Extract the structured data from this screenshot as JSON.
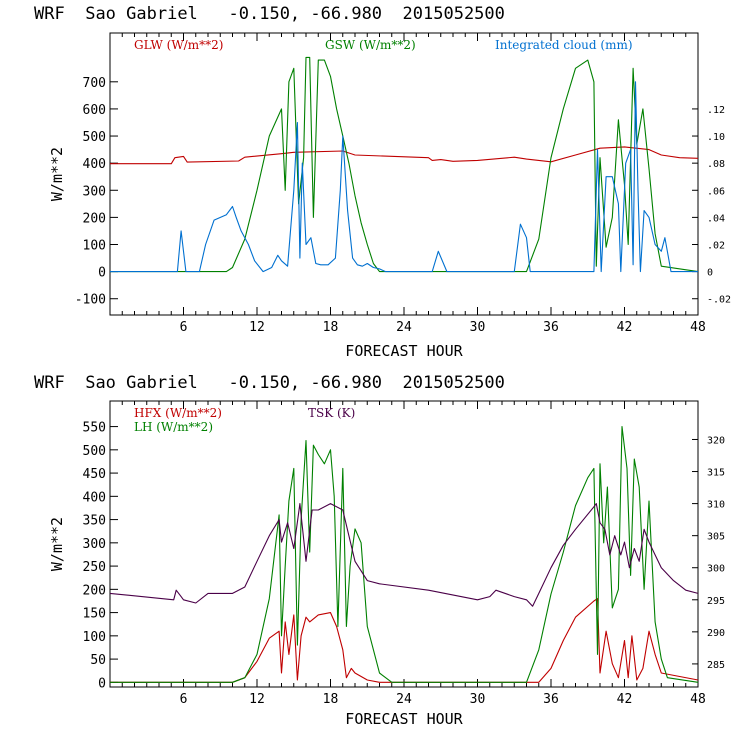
{
  "top_title": {
    "model": "WRF",
    "site": "Sao Gabriel",
    "coords": "-0.150, -66.980",
    "run": "2015052500"
  },
  "bottom_title": {
    "model": "WRF",
    "site": "Sao Gabriel",
    "coords": "-0.150, -66.980",
    "run": "2015052500"
  },
  "colors": {
    "red": "#c00000",
    "green": "#008000",
    "blue": "#0070d0",
    "purple": "#4a0048"
  },
  "chart_data": [
    {
      "type": "line",
      "title": "WRF Sao Gabriel -0.150, -66.980 2015052500",
      "xlabel": "FORECAST HOUR",
      "ylabel": "W/m**2",
      "xlim": [
        0,
        48
      ],
      "ylim": [
        -160,
        880
      ],
      "xticks": [
        "6",
        "12",
        "18",
        "24",
        "30",
        "36",
        "42",
        "48"
      ],
      "yticks": [
        "-100",
        "0",
        "100",
        "200",
        "300",
        "400",
        "500",
        "600",
        "700"
      ],
      "y2label": "Integrated cloud (mm)",
      "y2lim": [
        -0.032,
        0.176
      ],
      "y2ticks": [
        "-.02",
        "0",
        ".02",
        ".04",
        ".06",
        ".08",
        ".10",
        ".12"
      ],
      "legend": [
        {
          "label": "GLW (W/m**2)",
          "color": "#c00000"
        },
        {
          "label": "GSW (W/m**2)",
          "color": "#008000"
        },
        {
          "label": "Integrated cloud (mm)",
          "color": "#0070d0"
        }
      ],
      "series": [
        {
          "name": "GLW",
          "axis": "left",
          "color": "#c00000",
          "x": [
            0,
            5,
            5.3,
            6,
            6.3,
            10.5,
            11,
            14,
            15,
            19,
            20,
            26,
            26.3,
            27,
            28,
            30,
            33,
            34,
            36,
            38,
            40,
            42,
            44,
            45,
            46.5,
            48
          ],
          "y": [
            398,
            398,
            420,
            425,
            404,
            408,
            422,
            435,
            440,
            445,
            430,
            420,
            410,
            413,
            407,
            410,
            422,
            415,
            405,
            430,
            455,
            460,
            450,
            430,
            420,
            418
          ]
        },
        {
          "name": "GSW",
          "axis": "left",
          "color": "#008000",
          "x": [
            0,
            9.5,
            10,
            11,
            12,
            13,
            14,
            14.3,
            14.6,
            15,
            15.4,
            15.8,
            16,
            16.3,
            16.6,
            17,
            17.5,
            18,
            18.5,
            19,
            19.5,
            20,
            20.5,
            21,
            21.5,
            22,
            34,
            35,
            36,
            37,
            38,
            39,
            39.5,
            39.7,
            40,
            40.5,
            41,
            41.5,
            42,
            42.3,
            42.7,
            43,
            43.5,
            44,
            44.5,
            45,
            48
          ],
          "y": [
            0,
            0,
            15,
            120,
            300,
            500,
            600,
            300,
            700,
            750,
            250,
            420,
            790,
            790,
            200,
            780,
            780,
            720,
            600,
            500,
            400,
            280,
            180,
            100,
            30,
            0,
            0,
            120,
            420,
            600,
            750,
            780,
            700,
            20,
            420,
            90,
            200,
            560,
            320,
            100,
            750,
            470,
            600,
            380,
            140,
            20,
            0
          ]
        },
        {
          "name": "Integrated cloud",
          "axis": "right",
          "color": "#0070d0",
          "x": [
            0,
            5.5,
            5.8,
            6.2,
            7.3,
            7.8,
            8.5,
            9.5,
            10,
            10.3,
            10.7,
            11.3,
            11.8,
            12.5,
            13.2,
            13.7,
            14,
            14.5,
            15,
            15.3,
            15.5,
            15.7,
            16,
            16.4,
            16.8,
            17.2,
            17.8,
            18.4,
            18.8,
            19,
            19.4,
            19.8,
            20.2,
            20.6,
            21,
            21.5,
            22,
            22.5,
            26.3,
            26.8,
            27.5,
            33,
            33.5,
            34,
            34.3,
            39.5,
            39.8,
            40.1,
            40.5,
            41,
            41.5,
            41.7,
            42.1,
            42.5,
            42.7,
            42.9,
            43.1,
            43.3,
            43.6,
            44,
            44.5,
            45,
            45.3,
            45.8,
            48
          ],
          "y": [
            0,
            0,
            0.03,
            0,
            0,
            0.02,
            0.038,
            0.042,
            0.048,
            0.04,
            0.03,
            0.02,
            0.008,
            0,
            0.003,
            0.012,
            0.008,
            0.004,
            0.06,
            0.11,
            0.01,
            0.08,
            0.02,
            0.025,
            0.006,
            0.005,
            0.005,
            0.01,
            0.06,
            0.1,
            0.045,
            0.01,
            0.005,
            0.004,
            0.006,
            0.003,
            0.002,
            0,
            0,
            0.015,
            0,
            0,
            0.035,
            0.025,
            0,
            0,
            0.09,
            0,
            0.07,
            0.07,
            0.05,
            0,
            0.08,
            0.09,
            0.005,
            0.14,
            0.06,
            0,
            0.045,
            0.04,
            0.02,
            0.015,
            0.025,
            0,
            0
          ]
        }
      ]
    },
    {
      "type": "line",
      "title": "WRF Sao Gabriel -0.150, -66.980 2015052500",
      "xlabel": "FORECAST HOUR",
      "ylabel": "W/m**2",
      "xlim": [
        0,
        48
      ],
      "ylim": [
        -10,
        605
      ],
      "xticks": [
        "6",
        "12",
        "18",
        "24",
        "30",
        "36",
        "42",
        "48"
      ],
      "yticks": [
        "0",
        "50",
        "100",
        "150",
        "200",
        "250",
        "300",
        "350",
        "400",
        "450",
        "500",
        "550"
      ],
      "y2label": "TSK (K)",
      "y2lim": [
        281.4,
        326
      ],
      "y2ticks": [
        "285",
        "290",
        "295",
        "300",
        "305",
        "310",
        "315",
        "320"
      ],
      "legend": [
        {
          "label": "HFX (W/m**2)",
          "color": "#c00000"
        },
        {
          "label": "LH  (W/m**2)",
          "color": "#008000"
        },
        {
          "label": "TSK (K)",
          "color": "#4a0048"
        }
      ],
      "series": [
        {
          "name": "HFX",
          "axis": "left",
          "color": "#c00000",
          "x": [
            0,
            10,
            11,
            12,
            13,
            13.8,
            14,
            14.3,
            14.6,
            15,
            15.3,
            15.6,
            16,
            16.3,
            17,
            18,
            18.5,
            19,
            19.3,
            19.7,
            20,
            21,
            22,
            35,
            36,
            37,
            38,
            39.5,
            39.8,
            40,
            40.5,
            41,
            41.5,
            42,
            42.3,
            42.6,
            43,
            43.5,
            44,
            44.5,
            45,
            48
          ],
          "y": [
            0,
            0,
            10,
            45,
            95,
            110,
            20,
            130,
            60,
            145,
            5,
            100,
            140,
            130,
            145,
            150,
            120,
            70,
            10,
            30,
            20,
            5,
            0,
            0,
            30,
            90,
            140,
            175,
            180,
            20,
            110,
            40,
            10,
            90,
            10,
            100,
            5,
            30,
            110,
            60,
            20,
            5
          ]
        },
        {
          "name": "LH",
          "axis": "left",
          "color": "#008000",
          "x": [
            0,
            10,
            11,
            12,
            13,
            13.8,
            14,
            14.3,
            14.6,
            15,
            15.3,
            15.6,
            16,
            16.3,
            16.6,
            17,
            17.5,
            18,
            18.3,
            18.6,
            19,
            19.3,
            19.6,
            20,
            20.5,
            21,
            22,
            23,
            34,
            35,
            36,
            37,
            38,
            39,
            39.5,
            39.8,
            40,
            40.3,
            40.6,
            41,
            41.5,
            41.8,
            42.2,
            42.5,
            42.8,
            43.2,
            43.6,
            44,
            44.5,
            45,
            45.5,
            48
          ],
          "y": [
            0,
            0,
            10,
            60,
            180,
            360,
            100,
            250,
            390,
            460,
            80,
            350,
            520,
            280,
            510,
            490,
            470,
            500,
            400,
            120,
            460,
            120,
            250,
            330,
            300,
            120,
            20,
            0,
            0,
            70,
            190,
            280,
            380,
            440,
            460,
            60,
            470,
            300,
            420,
            160,
            200,
            550,
            460,
            230,
            480,
            420,
            200,
            390,
            130,
            50,
            10,
            0
          ]
        },
        {
          "name": "TSK",
          "axis": "right",
          "color": "#4a0048",
          "x": [
            0,
            5.2,
            5.4,
            5.8,
            6,
            7,
            8,
            10,
            11,
            12,
            13,
            13.8,
            14,
            14.5,
            15,
            15.5,
            16,
            16.5,
            17,
            18,
            19,
            19.5,
            20,
            21,
            22,
            26,
            30,
            31,
            31.5,
            33,
            34,
            34.5,
            35,
            36,
            37,
            38,
            39.5,
            39.7,
            40,
            40.4,
            40.8,
            41.2,
            41.7,
            42,
            42.4,
            42.8,
            43.2,
            43.6,
            44,
            44.5,
            45,
            46,
            47,
            48
          ],
          "y": [
            296,
            295,
            296.5,
            295.5,
            295,
            294.5,
            296,
            296,
            297,
            301,
            305,
            307.5,
            304,
            307,
            303,
            310,
            301,
            309,
            309,
            310,
            309,
            305,
            301,
            298,
            297.5,
            296.5,
            295,
            295.5,
            296.5,
            295.5,
            295,
            294,
            296,
            300,
            303.5,
            306,
            309.5,
            310,
            307,
            306,
            302,
            305,
            302,
            304,
            300,
            303,
            301,
            306,
            304,
            302,
            300,
            298,
            296.5,
            296
          ]
        }
      ]
    }
  ]
}
